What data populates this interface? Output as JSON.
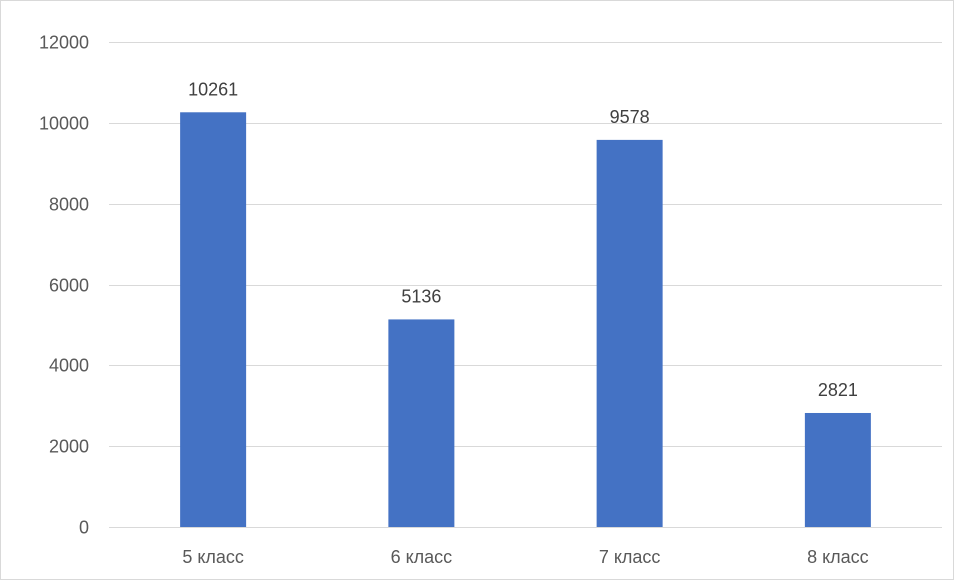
{
  "chart_data": {
    "type": "bar",
    "categories": [
      "5 класс",
      "6 класс",
      "7 класс",
      "8 класс"
    ],
    "values": [
      10261,
      5136,
      9578,
      2821
    ],
    "data_labels": [
      "10261",
      "5136",
      "9578",
      "2821"
    ],
    "y_ticks": [
      "0",
      "2000",
      "4000",
      "6000",
      "8000",
      "10000",
      "12000"
    ],
    "ylim": [
      0,
      12000
    ],
    "title": "",
    "xlabel": "",
    "ylabel": "",
    "grid": true,
    "legend": "none",
    "bar_color": "#4472C4",
    "gridline_color": "#D9D9D9"
  }
}
